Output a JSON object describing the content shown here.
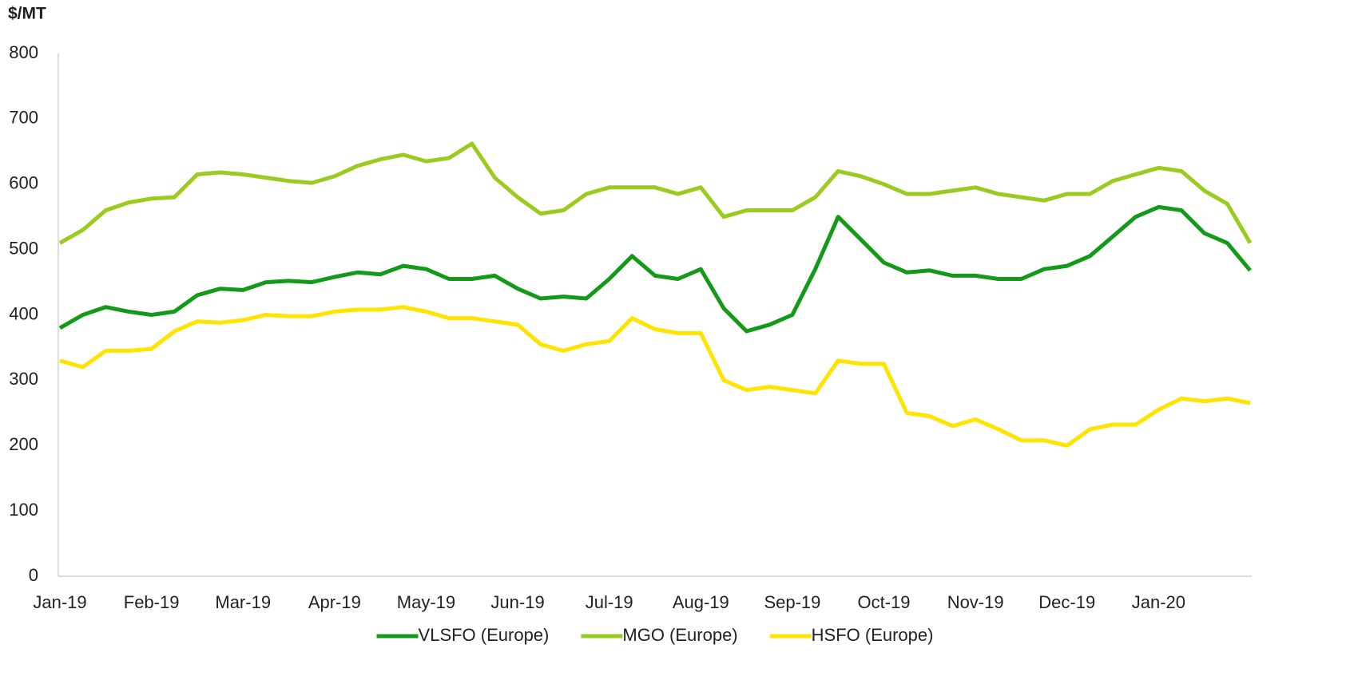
{
  "chart_data": {
    "type": "line",
    "y_axis_label": "$/MT",
    "categories": [
      "Jan-19",
      null,
      null,
      null,
      "Feb-19",
      null,
      null,
      null,
      "Mar-19",
      null,
      null,
      null,
      "Apr-19",
      null,
      null,
      null,
      "May-19",
      null,
      null,
      null,
      "Jun-19",
      null,
      null,
      null,
      "Jul-19",
      null,
      null,
      null,
      "Aug-19",
      null,
      null,
      null,
      "Sep-19",
      null,
      null,
      null,
      "Oct-19",
      null,
      null,
      null,
      "Nov-19",
      null,
      null,
      null,
      "Dec-19",
      null,
      null,
      null,
      "Jan-20",
      null,
      null,
      null,
      null
    ],
    "series": [
      {
        "name": "VLSFO (Europe)",
        "color": "#129a18",
        "values": [
          380,
          400,
          412,
          405,
          400,
          405,
          430,
          440,
          438,
          450,
          452,
          450,
          458,
          465,
          462,
          475,
          470,
          455,
          455,
          460,
          440,
          425,
          428,
          425,
          455,
          490,
          460,
          455,
          470,
          410,
          375,
          385,
          400,
          470,
          550,
          515,
          480,
          465,
          468,
          460,
          460,
          455,
          455,
          470,
          475,
          490,
          520,
          550,
          565,
          560,
          525,
          510,
          468
        ]
      },
      {
        "name": "MGO (Europe)",
        "color": "#99cc1f",
        "values": [
          510,
          530,
          560,
          572,
          578,
          580,
          615,
          618,
          615,
          610,
          605,
          602,
          612,
          628,
          638,
          645,
          635,
          640,
          662,
          610,
          580,
          555,
          560,
          585,
          595,
          595,
          595,
          585,
          595,
          550,
          560,
          560,
          560,
          580,
          620,
          612,
          600,
          585,
          585,
          590,
          595,
          585,
          580,
          575,
          585,
          585,
          605,
          615,
          625,
          620,
          590,
          570,
          510
        ]
      },
      {
        "name": "HSFO (Europe)",
        "color": "#ffe400",
        "values": [
          330,
          320,
          345,
          345,
          348,
          375,
          390,
          388,
          392,
          400,
          398,
          398,
          405,
          408,
          408,
          412,
          405,
          395,
          395,
          390,
          385,
          355,
          345,
          355,
          360,
          395,
          378,
          372,
          372,
          300,
          285,
          290,
          285,
          280,
          330,
          325,
          325,
          250,
          245,
          230,
          240,
          225,
          208,
          208,
          200,
          225,
          232,
          232,
          255,
          272,
          268,
          272,
          265
        ]
      }
    ],
    "ylim": [
      0,
      800
    ],
    "yticks": [
      0,
      100,
      200,
      300,
      400,
      500,
      600,
      700,
      800
    ],
    "grid": false,
    "legend": "bottom"
  }
}
